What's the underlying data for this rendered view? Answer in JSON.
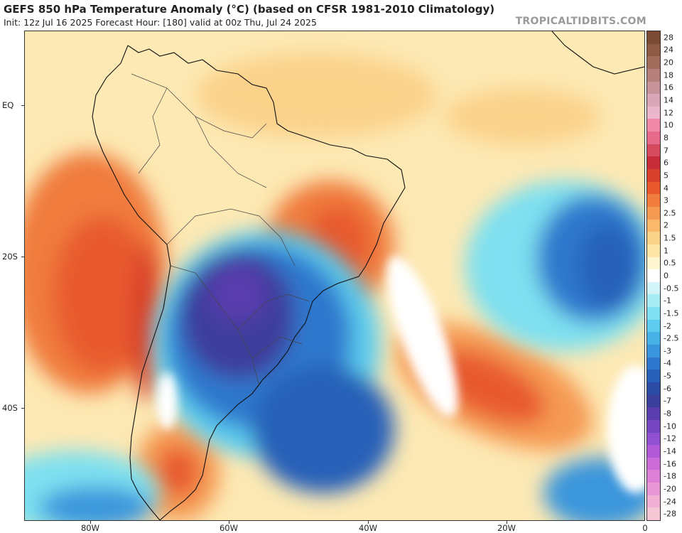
{
  "header": {
    "title": "GEFS 850 hPa Temperature Anomaly (°C) (based on CFSR 1981-2010 Climatology)",
    "subtitle": "Init: 12z Jul 16 2025   Forecast Hour: [180]   valid at 00z Thu, Jul 24 2025",
    "brand": "TROPICALTIDBITS.COM"
  },
  "axes": {
    "lat_labels": [
      "EQ",
      "20S",
      "40S"
    ],
    "lon_labels": [
      "80W",
      "60W",
      "40W",
      "20W",
      "0"
    ]
  },
  "colorbar": {
    "labels": [
      "28",
      "24",
      "20",
      "18",
      "16",
      "14",
      "12",
      "10",
      "8",
      "7",
      "6",
      "5",
      "4",
      "3",
      "2.5",
      "2",
      "1.5",
      "1",
      "0.5",
      "0",
      "-0.5",
      "-1",
      "-1.5",
      "-2",
      "-2.5",
      "-3",
      "-4",
      "-5",
      "-6",
      "-7",
      "-8",
      "-10",
      "-12",
      "-14",
      "-16",
      "-18",
      "-20",
      "-24",
      "-28"
    ],
    "colors": [
      "#7a4a32",
      "#8e5a44",
      "#a26c5a",
      "#b5807a",
      "#c7939a",
      "#d9a6b8",
      "#eab6cc",
      "#f08aa8",
      "#e66b8a",
      "#d44a5e",
      "#c62d38",
      "#d8402c",
      "#e85a2e",
      "#f07c3e",
      "#f59a52",
      "#f9b86a",
      "#fbd28a",
      "#fde6a8",
      "#fef6d2",
      "#ffffff",
      "#d2f4f8",
      "#a6eef4",
      "#7ee0f0",
      "#5ccbed",
      "#46b2e6",
      "#3a96dc",
      "#2f78cd",
      "#2660b8",
      "#2a4aa4",
      "#3c3e9c",
      "#5a3eae",
      "#7446c0",
      "#9050d0",
      "#b05ad8",
      "#cc6ad8",
      "#de80d8",
      "#e898d6",
      "#f0b0d4",
      "#f6c8d6"
    ]
  }
}
